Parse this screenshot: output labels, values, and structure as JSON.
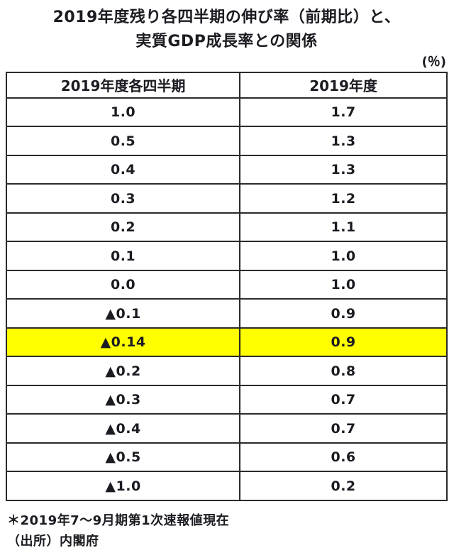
{
  "page_title": {
    "line1": "2019年度残り各四半期の伸び率（前期比）と、",
    "line2": "実質GDP成長率との関係"
  },
  "unit_label": "(％)",
  "chart_data": {
    "type": "table",
    "title": "2019年度残り各四半期の伸び率（前期比）と、実質GDP成長率との関係",
    "unit": "%",
    "columns": [
      "2019年度各四半期",
      "2019年度"
    ],
    "rows": [
      {
        "quarter_growth": "1.0",
        "fy_growth": "1.7",
        "highlight": false
      },
      {
        "quarter_growth": "0.5",
        "fy_growth": "1.3",
        "highlight": false
      },
      {
        "quarter_growth": "0.4",
        "fy_growth": "1.3",
        "highlight": false
      },
      {
        "quarter_growth": "0.3",
        "fy_growth": "1.2",
        "highlight": false
      },
      {
        "quarter_growth": "0.2",
        "fy_growth": "1.1",
        "highlight": false
      },
      {
        "quarter_growth": "0.1",
        "fy_growth": "1.0",
        "highlight": false
      },
      {
        "quarter_growth": "0.0",
        "fy_growth": "1.0",
        "highlight": false
      },
      {
        "quarter_growth": "▲0.1",
        "fy_growth": "0.9",
        "highlight": false
      },
      {
        "quarter_growth": "▲0.14",
        "fy_growth": "0.9",
        "highlight": true
      },
      {
        "quarter_growth": "▲0.2",
        "fy_growth": "0.8",
        "highlight": false
      },
      {
        "quarter_growth": "▲0.3",
        "fy_growth": "0.7",
        "highlight": false
      },
      {
        "quarter_growth": "▲0.4",
        "fy_growth": "0.7",
        "highlight": false
      },
      {
        "quarter_growth": "▲0.5",
        "fy_growth": "0.6",
        "highlight": false
      },
      {
        "quarter_growth": "▲1.0",
        "fy_growth": "0.2",
        "highlight": false
      }
    ],
    "colors": {
      "highlight_row": "#ffff00",
      "border": "#2b2b2b",
      "text": "#1b1b22"
    }
  },
  "footnotes": {
    "note": "＊2019年7～9月期第1次速報値現在",
    "source": "（出所）内閣府"
  }
}
